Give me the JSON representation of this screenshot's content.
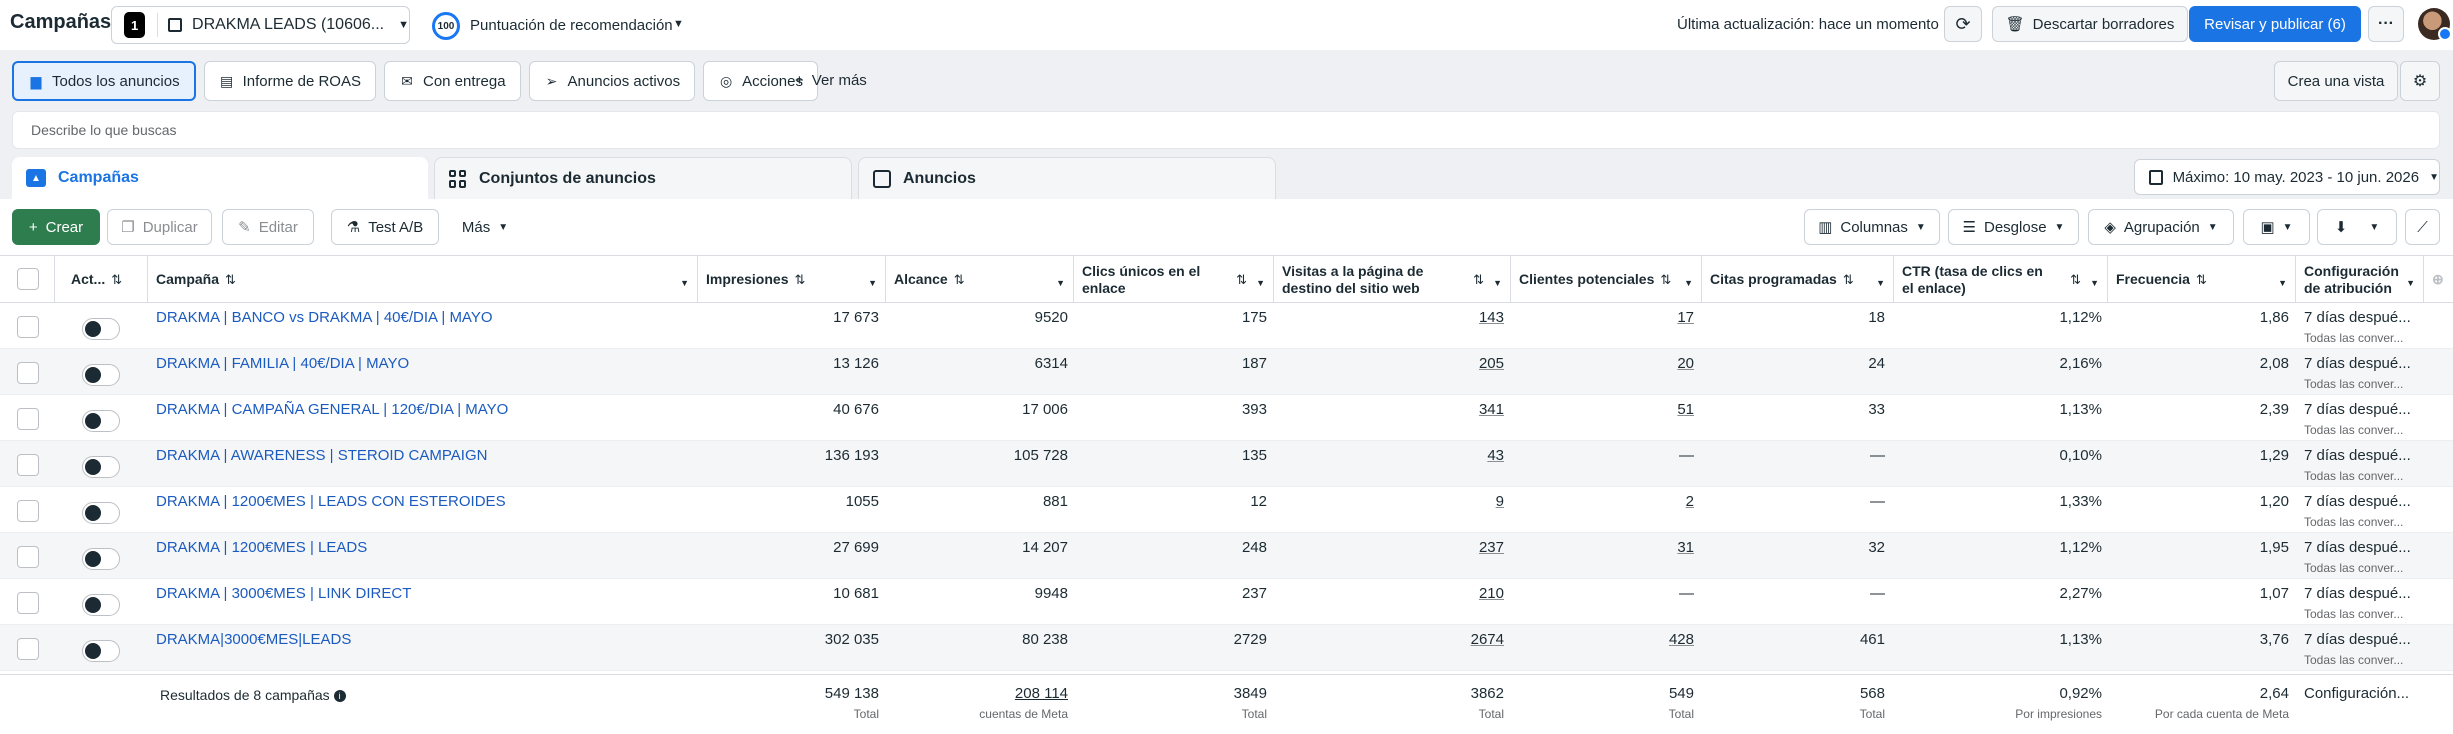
{
  "header": {
    "title": "Campañas",
    "account_name": "DRAKMA LEADS (10606...",
    "account_logo_glyph": "1",
    "score_value": "100",
    "score_label": "Puntuación de recomendación",
    "last_update": "Última actualización: hace un momento",
    "discard_label": "Descartar borradores",
    "publish_label": "Revisar y publicar (6)",
    "more_icon": "ellipsis-icon"
  },
  "views": {
    "items": [
      {
        "label": "Todos los anuncios",
        "icon": "folder-icon",
        "active": true
      },
      {
        "label": "Informe de ROAS",
        "icon": "report-icon",
        "active": false
      },
      {
        "label": "Con entrega",
        "icon": "delivery-icon",
        "active": false
      },
      {
        "label": "Anuncios activos",
        "icon": "send-icon",
        "active": false
      },
      {
        "label": "Acciones",
        "icon": "actions-icon",
        "active": false
      }
    ],
    "see_more": "Ver más",
    "create_view": "Crea una vista"
  },
  "search": {
    "placeholder": "Describe lo que buscas"
  },
  "levels": {
    "campaigns": "Campañas",
    "adsets": "Conjuntos de anuncios",
    "ads": "Anuncios"
  },
  "date_range": "Máximo: 10 may. 2023 - 10 jun. 2026",
  "toolbar": {
    "create": "Crear",
    "duplicate": "Duplicar",
    "edit": "Editar",
    "ab_test": "Test A/B",
    "more": "Más",
    "columns": "Columnas",
    "breakdown": "Desglose",
    "grouping": "Agrupación"
  },
  "columns": {
    "active": "Act...",
    "campaign": "Campaña",
    "impressions": "Impresiones",
    "reach": "Alcance",
    "unique_clicks": "Clics únicos en el enlace",
    "landing_views": "Visitas a la página de destino del sitio web",
    "leads": "Clientes potenciales",
    "appointments": "Citas programadas",
    "ctr": "CTR (tasa de clics en el enlace)",
    "frequency": "Frecuencia",
    "attribution": "Configuración de atribución"
  },
  "rows": [
    {
      "name": "DRAKMA | BANCO vs DRAKMA | 40€/DIA | MAYO",
      "impressions": "17 673",
      "reach": "9520",
      "clicks": "175",
      "landing": "143",
      "leads": "17",
      "appts": "18",
      "ctr": "1,12%",
      "freq": "1,86",
      "attr": "7 días despué...",
      "attr_sub": "Todas las conver..."
    },
    {
      "name": "DRAKMA | FAMILIA | 40€/DIA | MAYO",
      "impressions": "13 126",
      "reach": "6314",
      "clicks": "187",
      "landing": "205",
      "leads": "20",
      "appts": "24",
      "ctr": "2,16%",
      "freq": "2,08",
      "attr": "7 días despué...",
      "attr_sub": "Todas las conver..."
    },
    {
      "name": "DRAKMA | CAMPAÑA GENERAL | 120€/DIA | MAYO",
      "impressions": "40 676",
      "reach": "17 006",
      "clicks": "393",
      "landing": "341",
      "leads": "51",
      "appts": "33",
      "ctr": "1,13%",
      "freq": "2,39",
      "attr": "7 días despué...",
      "attr_sub": "Todas las conver..."
    },
    {
      "name": "DRAKMA | AWARENESS | STEROID CAMPAIGN",
      "impressions": "136 193",
      "reach": "105 728",
      "clicks": "135",
      "landing": "43",
      "leads": "—",
      "appts": "—",
      "ctr": "0,10%",
      "freq": "1,29",
      "attr": "7 días despué...",
      "attr_sub": "Todas las conver..."
    },
    {
      "name": "DRAKMA | 1200€MES | LEADS CON ESTEROIDES",
      "impressions": "1055",
      "reach": "881",
      "clicks": "12",
      "landing": "9",
      "leads": "2",
      "appts": "—",
      "ctr": "1,33%",
      "freq": "1,20",
      "attr": "7 días despué...",
      "attr_sub": "Todas las conver..."
    },
    {
      "name": "DRAKMA | 1200€MES | LEADS",
      "impressions": "27 699",
      "reach": "14 207",
      "clicks": "248",
      "landing": "237",
      "leads": "31",
      "appts": "32",
      "ctr": "1,12%",
      "freq": "1,95",
      "attr": "7 días despué...",
      "attr_sub": "Todas las conver..."
    },
    {
      "name": "DRAKMA | 3000€MES | LINK DIRECT",
      "impressions": "10 681",
      "reach": "9948",
      "clicks": "237",
      "landing": "210",
      "leads": "—",
      "appts": "—",
      "ctr": "2,27%",
      "freq": "1,07",
      "attr": "7 días despué...",
      "attr_sub": "Todas las conver..."
    },
    {
      "name": "DRAKMA|3000€MES|LEADS",
      "impressions": "302 035",
      "reach": "80 238",
      "clicks": "2729",
      "landing": "2674",
      "leads": "428",
      "appts": "461",
      "ctr": "1,13%",
      "freq": "3,76",
      "attr": "7 días despué...",
      "attr_sub": "Todas las conver..."
    }
  ],
  "totals": {
    "label": "Resultados de 8 campañas",
    "impressions": "549 138",
    "impressions_sub": "Total",
    "reach": "208 114",
    "reach_sub": "cuentas de Meta",
    "clicks": "3849",
    "clicks_sub": "Total",
    "landing": "3862",
    "landing_sub": "Total",
    "leads": "549",
    "leads_sub": "Total",
    "appts": "568",
    "appts_sub": "Total",
    "ctr": "0,92%",
    "ctr_sub": "Por impresiones",
    "freq": "2,64",
    "freq_sub": "Por cada cuenta de Meta",
    "attr": "Configuración..."
  },
  "colors": {
    "accent": "#1b74e4",
    "create_green": "#2e7d4f",
    "link": "#1b5bbf"
  }
}
